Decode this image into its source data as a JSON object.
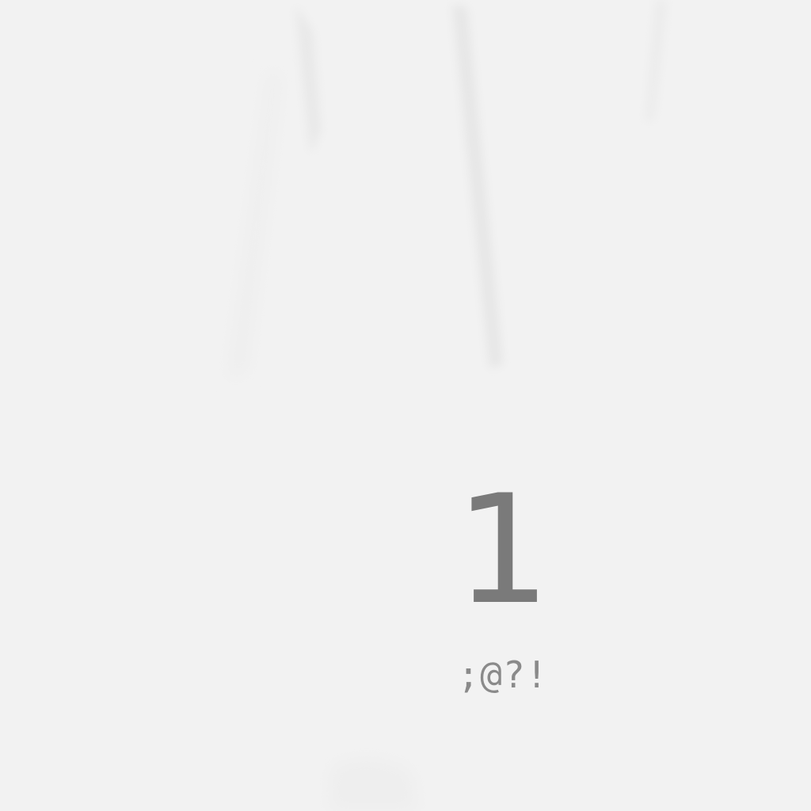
{
  "key": {
    "number": "1",
    "symbols": ";@?!"
  },
  "colors": {
    "background": "#f2f2f2",
    "key_text": "#7a7a7a",
    "symbol_text": "#8a8a8a"
  }
}
